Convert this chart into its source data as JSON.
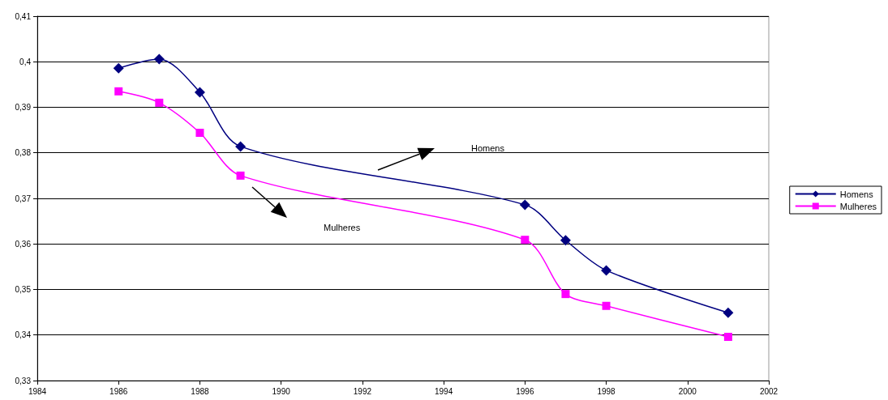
{
  "chart_data": {
    "type": "line",
    "x": [
      1986,
      1987,
      1988,
      1989,
      1996,
      1997,
      1998,
      2001
    ],
    "series": [
      {
        "name": "Homens",
        "color": "#000080",
        "marker": "diamond",
        "values": [
          0.3986,
          0.4006,
          0.3933,
          0.3814,
          0.3686,
          0.3608,
          0.3542,
          0.3449
        ]
      },
      {
        "name": "Mulheres",
        "color": "#ff00ff",
        "marker": "square",
        "values": [
          0.3935,
          0.391,
          0.3844,
          0.375,
          0.3609,
          0.349,
          0.3464,
          0.3396
        ]
      }
    ],
    "xlim": [
      1984,
      2002
    ],
    "xticks": [
      1984,
      1986,
      1988,
      1990,
      1992,
      1994,
      1996,
      1998,
      2000,
      2002
    ],
    "ylim": [
      0.33,
      0.41
    ],
    "yticks": [
      {
        "value": 0.33,
        "label": "0,33"
      },
      {
        "value": 0.34,
        "label": "0,34"
      },
      {
        "value": 0.35,
        "label": "0,35"
      },
      {
        "value": 0.36,
        "label": "0,36"
      },
      {
        "value": 0.37,
        "label": "0,37"
      },
      {
        "value": 0.38,
        "label": "0,38"
      },
      {
        "value": 0.39,
        "label": "0,39"
      },
      {
        "value": 0.4,
        "label": "0,4"
      },
      {
        "value": 0.41,
        "label": "0,41"
      }
    ],
    "grid": "y",
    "legend": "right",
    "annotations": [
      "Homens",
      "Mulheres"
    ]
  }
}
